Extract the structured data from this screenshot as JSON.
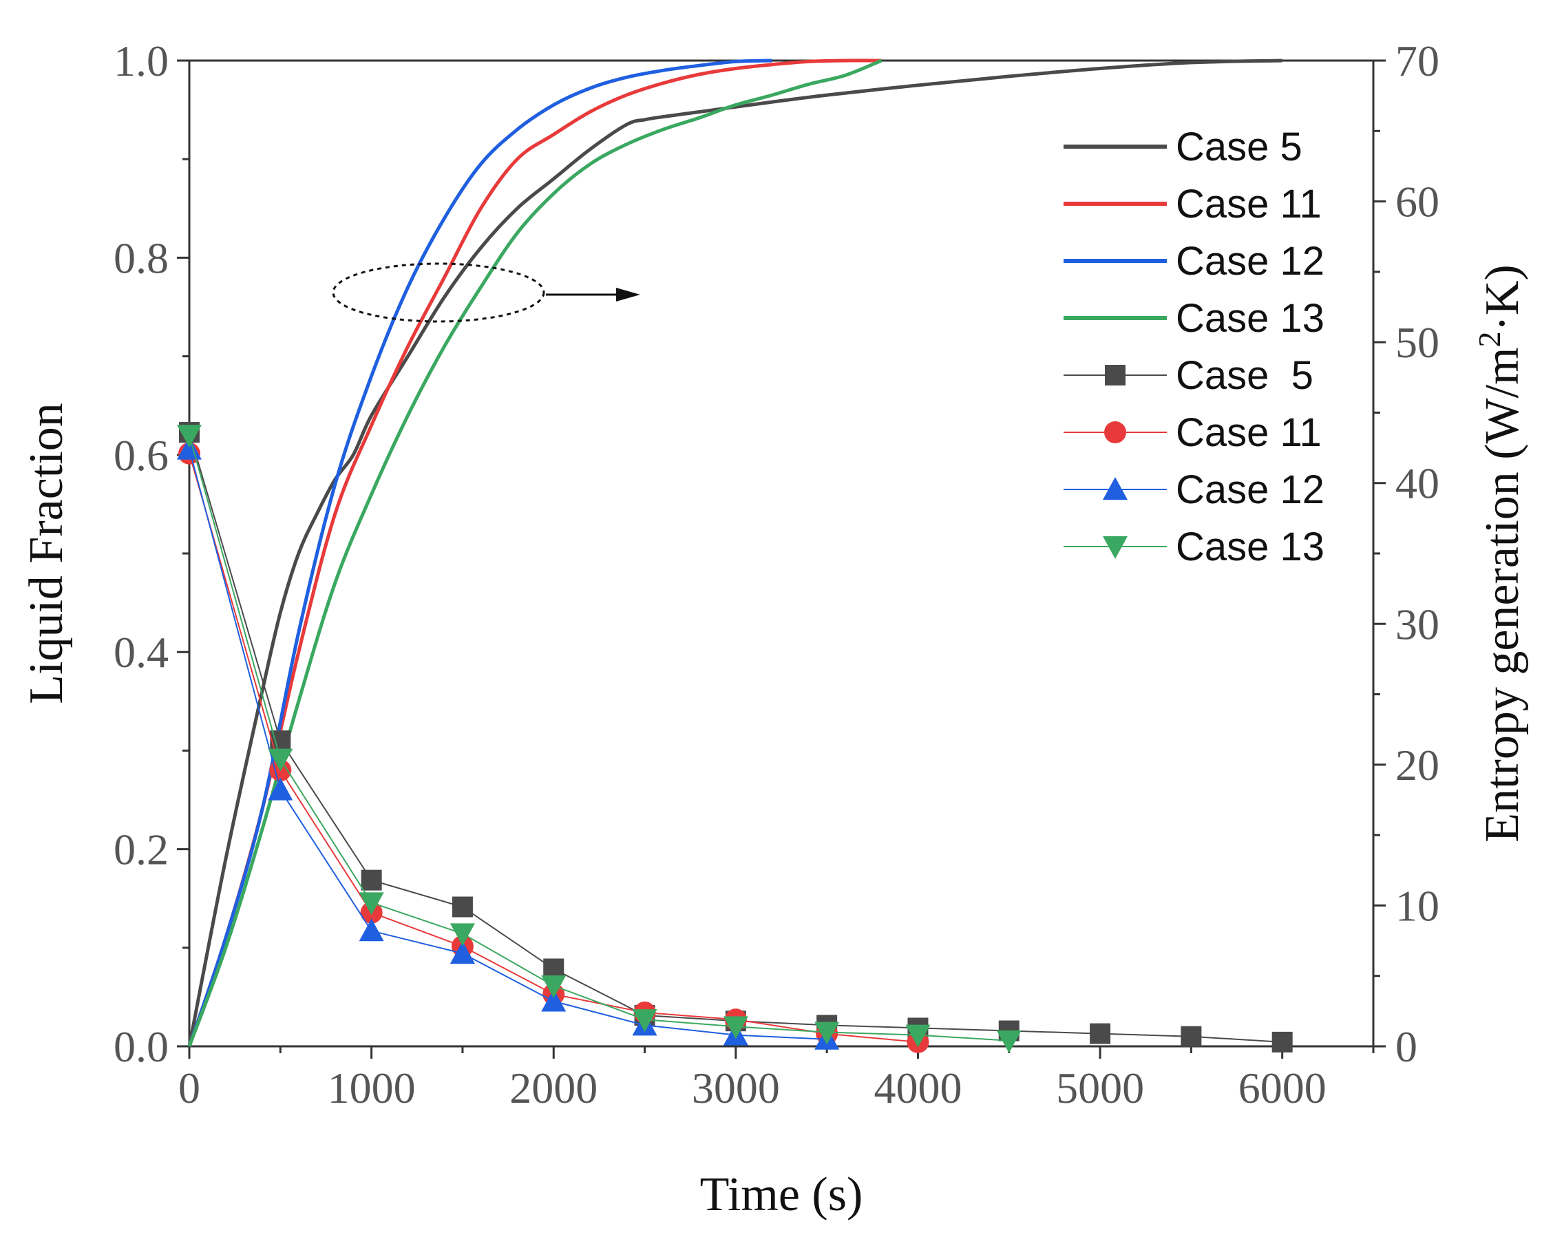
{
  "chart_data": {
    "type": "line",
    "title": "",
    "xlabel": "Time (s)",
    "ylabel_left": "Liquid Fraction",
    "ylabel_right_prefix": "Entropy generation (W/m",
    "ylabel_right_sup": "2",
    "ylabel_right_suffix": "·K)",
    "xlim": [
      0,
      6500
    ],
    "ylim_left": [
      0,
      1.0
    ],
    "ylim_right": [
      0,
      70
    ],
    "x_ticks": [
      "0",
      "1000",
      "2000",
      "3000",
      "4000",
      "5000",
      "6000"
    ],
    "y_left_ticks": [
      "0.0",
      "0.2",
      "0.4",
      "0.6",
      "0.8",
      "1.0"
    ],
    "y_right_ticks": [
      "0",
      "10",
      "20",
      "30",
      "40",
      "50",
      "60",
      "70"
    ],
    "liquid_fraction_series": [
      {
        "name": "Case 5",
        "color": "#4a4a4a",
        "x": [
          0,
          200,
          400,
          500,
          600,
          700,
          800,
          900,
          1000,
          1200,
          1400,
          1600,
          1800,
          2000,
          2200,
          2400,
          2500,
          2600,
          2800,
          3000,
          3200,
          3500,
          4000,
          4500,
          5000,
          5500,
          6000
        ],
        "y": [
          0,
          0.19,
          0.36,
          0.44,
          0.5,
          0.54,
          0.575,
          0.6,
          0.64,
          0.7,
          0.76,
          0.81,
          0.85,
          0.88,
          0.91,
          0.935,
          0.94,
          0.943,
          0.948,
          0.953,
          0.958,
          0.965,
          0.975,
          0.984,
          0.992,
          0.998,
          1.0
        ]
      },
      {
        "name": "Case 11",
        "color": "#e83a3a",
        "x": [
          0,
          200,
          400,
          600,
          800,
          1000,
          1200,
          1400,
          1600,
          1800,
          2000,
          2200,
          2400,
          2600,
          2800,
          3000,
          3200,
          3400,
          3600,
          3800
        ],
        "y": [
          0,
          0.11,
          0.24,
          0.4,
          0.54,
          0.63,
          0.71,
          0.78,
          0.85,
          0.9,
          0.925,
          0.948,
          0.965,
          0.977,
          0.986,
          0.992,
          0.996,
          0.999,
          1.0,
          1.0
        ]
      },
      {
        "name": "Case 12",
        "color": "#1f5fe0",
        "x": [
          0,
          200,
          400,
          600,
          800,
          1000,
          1200,
          1400,
          1600,
          1800,
          2000,
          2200,
          2400,
          2600,
          2800,
          3000,
          3200
        ],
        "y": [
          0,
          0.11,
          0.24,
          0.42,
          0.57,
          0.68,
          0.77,
          0.84,
          0.895,
          0.93,
          0.955,
          0.972,
          0.983,
          0.99,
          0.995,
          0.999,
          1.0
        ]
      },
      {
        "name": "Case 13",
        "color": "#3aa860",
        "x": [
          0,
          200,
          400,
          600,
          800,
          1000,
          1200,
          1400,
          1600,
          1800,
          2000,
          2200,
          2400,
          2600,
          2800,
          3000,
          3200,
          3400,
          3600,
          3800
        ],
        "y": [
          0,
          0.1,
          0.22,
          0.35,
          0.47,
          0.56,
          0.64,
          0.71,
          0.77,
          0.825,
          0.865,
          0.895,
          0.915,
          0.93,
          0.942,
          0.955,
          0.965,
          0.976,
          0.985,
          1.0
        ]
      }
    ],
    "entropy_series": [
      {
        "name": "Case  5",
        "color": "#4a4a4a",
        "marker": "square",
        "x": [
          0,
          500,
          1000,
          1500,
          2000,
          2500,
          3000,
          3500,
          4000,
          4500,
          5000,
          5500,
          6000
        ],
        "y": [
          43.6,
          21.7,
          11.8,
          9.9,
          5.5,
          2.2,
          1.8,
          1.5,
          1.3,
          1.1,
          0.9,
          0.7,
          0.3
        ]
      },
      {
        "name": "Case 11",
        "color": "#e83a3a",
        "marker": "circle",
        "x": [
          0,
          500,
          1000,
          1500,
          2000,
          2500,
          3000,
          3500,
          4000
        ],
        "y": [
          42.1,
          19.6,
          9.5,
          7.1,
          3.7,
          2.4,
          1.9,
          0.9,
          0.3
        ]
      },
      {
        "name": "Case 12",
        "color": "#1f5fe0",
        "marker": "triangle-up",
        "x": [
          0,
          500,
          1000,
          1500,
          2000,
          2500,
          3000,
          3500
        ],
        "y": [
          42.4,
          18.2,
          8.2,
          6.6,
          3.2,
          1.5,
          0.8,
          0.5
        ]
      },
      {
        "name": "Case 13",
        "color": "#3aa860",
        "marker": "triangle-down",
        "x": [
          0,
          500,
          1000,
          1500,
          2000,
          2500,
          3000,
          3500,
          4000,
          4500
        ],
        "y": [
          43.4,
          20.4,
          10.2,
          8.0,
          4.3,
          1.9,
          1.4,
          1.0,
          0.8,
          0.4
        ]
      }
    ],
    "legend_position": "top-right",
    "annotation": "dotted ellipse around liquid fraction curves with arrow pointing right"
  }
}
